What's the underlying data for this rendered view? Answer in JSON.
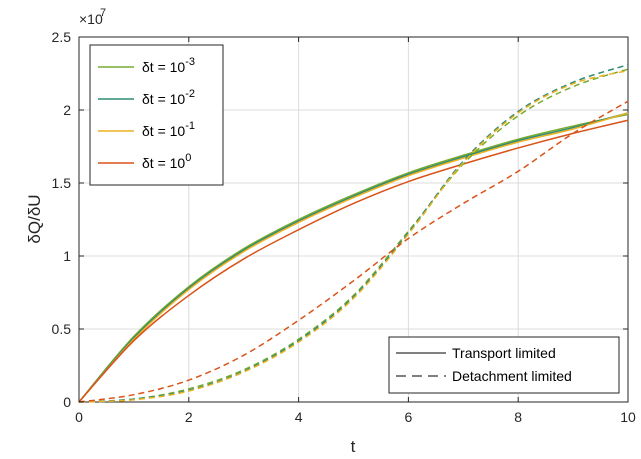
{
  "chart_data": {
    "type": "line",
    "title": "",
    "xlabel": "t",
    "ylabel": "δQ/δU",
    "xlim": [
      0,
      10
    ],
    "ylim": [
      0,
      25000000
    ],
    "exponent_label": "×10",
    "exponent_power": "7",
    "grid": true,
    "x_ticks": [
      0,
      2,
      4,
      6,
      8,
      10
    ],
    "x_tick_labels": [
      "0",
      "2",
      "4",
      "6",
      "8",
      "10"
    ],
    "y_ticks": [
      0,
      5000000,
      10000000,
      15000000,
      20000000,
      25000000
    ],
    "y_tick_labels": [
      "0",
      "0.5",
      "1",
      "1.5",
      "2",
      "2.5"
    ],
    "x": [
      0,
      1,
      2,
      3,
      4,
      5,
      6,
      7,
      8,
      9,
      10
    ],
    "color_legend": {
      "placement": "top-left",
      "entries": [
        {
          "prefix": "δt = 10",
          "power": "-3",
          "color": "#77ac30"
        },
        {
          "prefix": "δt = 10",
          "power": "-2",
          "color": "#2e8b74"
        },
        {
          "prefix": "δt = 10",
          "power": "-1",
          "color": "#edb120"
        },
        {
          "prefix": "δt = 10",
          "power": "0",
          "color": "#d95319"
        }
      ]
    },
    "style_legend": {
      "placement": "bottom-right",
      "entries": [
        {
          "label": "Transport limited",
          "dash": "solid"
        },
        {
          "label": "Detachment limited",
          "dash": "dashed"
        }
      ]
    },
    "series": [
      {
        "color": "#77ac30",
        "dash": "solid",
        "values": [
          0,
          4500000,
          7900000,
          10500000,
          12500000,
          14200000,
          15700000,
          16900000,
          18000000,
          18900000,
          19700000
        ]
      },
      {
        "color": "#2e8b74",
        "dash": "solid",
        "values": [
          0,
          4400000,
          7800000,
          10400000,
          12400000,
          14100000,
          15600000,
          16800000,
          17900000,
          18800000,
          19800000
        ]
      },
      {
        "color": "#edb120",
        "dash": "solid",
        "values": [
          0,
          4300000,
          7700000,
          10300000,
          12300000,
          14000000,
          15500000,
          16700000,
          17800000,
          18700000,
          19800000
        ]
      },
      {
        "color": "#d95319",
        "dash": "solid",
        "values": [
          0,
          4200000,
          7300000,
          9800000,
          11800000,
          13600000,
          15100000,
          16300000,
          17400000,
          18400000,
          19300000
        ]
      },
      {
        "color": "#77ac30",
        "dash": "dashed",
        "values": [
          0,
          200000,
          900000,
          2200000,
          4300000,
          7300000,
          11700000,
          16300000,
          19600000,
          21600000,
          22800000
        ]
      },
      {
        "color": "#2e8b74",
        "dash": "dashed",
        "values": [
          0,
          200000,
          800000,
          2100000,
          4200000,
          7200000,
          11600000,
          16500000,
          19900000,
          21900000,
          23100000
        ]
      },
      {
        "color": "#edb120",
        "dash": "dashed",
        "values": [
          0,
          150000,
          750000,
          2050000,
          4100000,
          7100000,
          11500000,
          16400000,
          19800000,
          21800000,
          22700000
        ]
      },
      {
        "color": "#d95319",
        "dash": "dashed",
        "values": [
          0,
          500000,
          1500000,
          3200000,
          5600000,
          8300000,
          11200000,
          13600000,
          15800000,
          18400000,
          20600000
        ]
      }
    ]
  }
}
